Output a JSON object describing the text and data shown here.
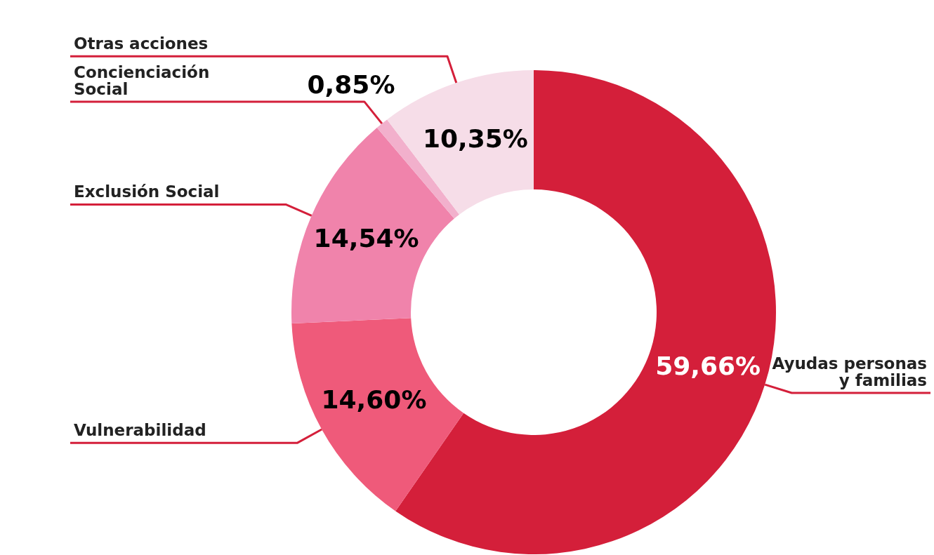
{
  "chart_data": {
    "type": "donut",
    "categories": [
      "Ayudas personas y familias",
      "Vulnerabilidad",
      "Exclusión Social",
      "Concienciación Social",
      "Otras acciones"
    ],
    "values": [
      59.66,
      14.6,
      14.54,
      0.85,
      10.35
    ],
    "colors": [
      "#d41f3a",
      "#ef5a7a",
      "#f083ab",
      "#f2b0cc",
      "#f6dde8"
    ],
    "value_labels": [
      "59,66%",
      "14,60%",
      "14,54%",
      "0,85%",
      "10,35%"
    ]
  }
}
